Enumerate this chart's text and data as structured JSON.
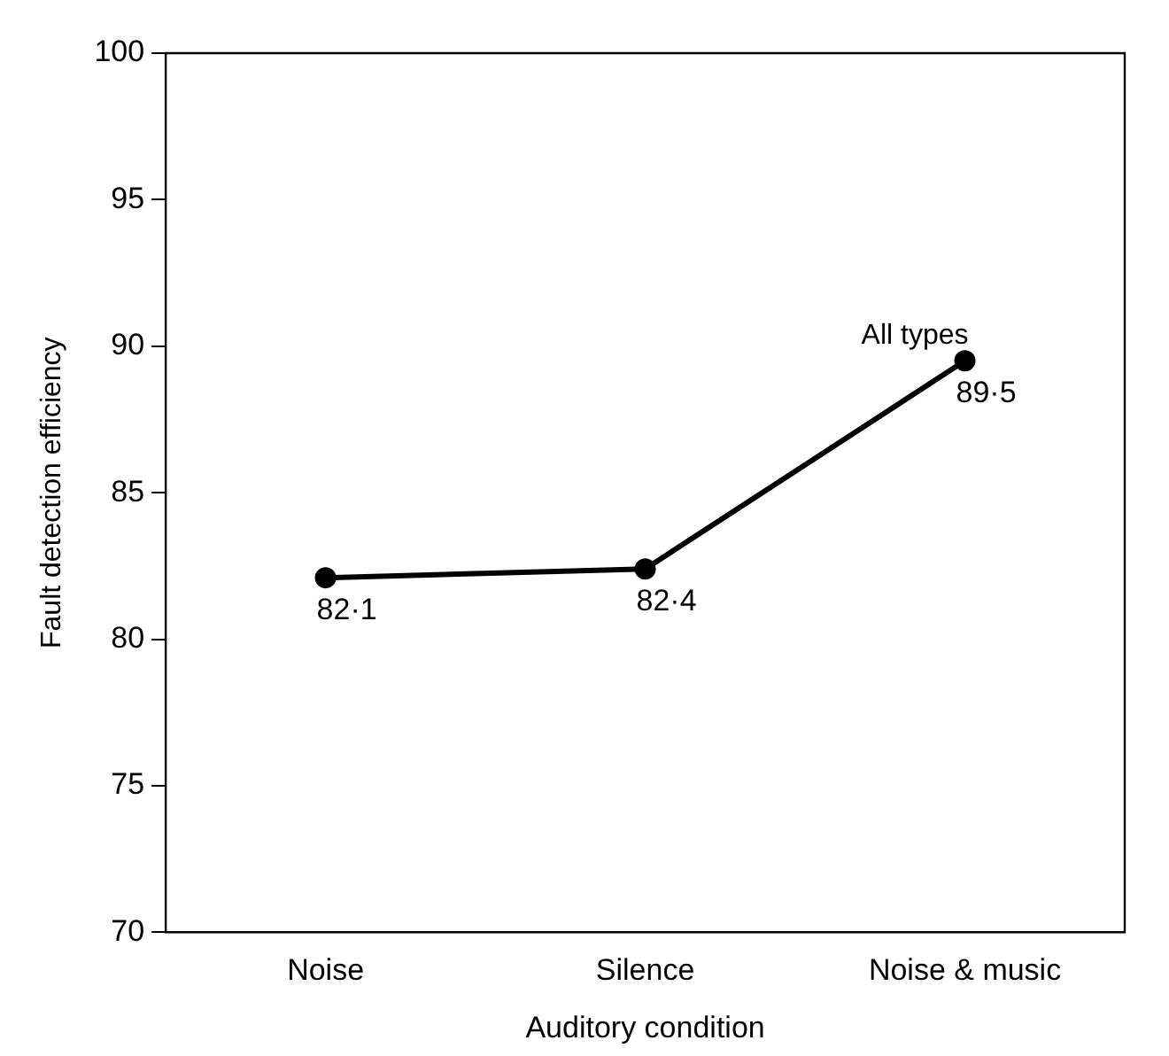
{
  "chart_data": {
    "type": "line",
    "xlabel": "Auditory condition",
    "ylabel": "Fault detection efficiency",
    "categories": [
      "Noise",
      "Silence",
      "Noise & music"
    ],
    "series": [
      {
        "name": "All types",
        "color": "#000000",
        "values": [
          82.1,
          82.4,
          89.5
        ],
        "value_labels": [
          "82·1",
          "82·4",
          "89·5"
        ]
      }
    ],
    "ylim": [
      70,
      100
    ],
    "yticks": [
      70,
      75,
      80,
      85,
      90,
      95,
      100
    ],
    "grid": false,
    "legend": false,
    "marker": "circle",
    "line_style": "solid"
  }
}
